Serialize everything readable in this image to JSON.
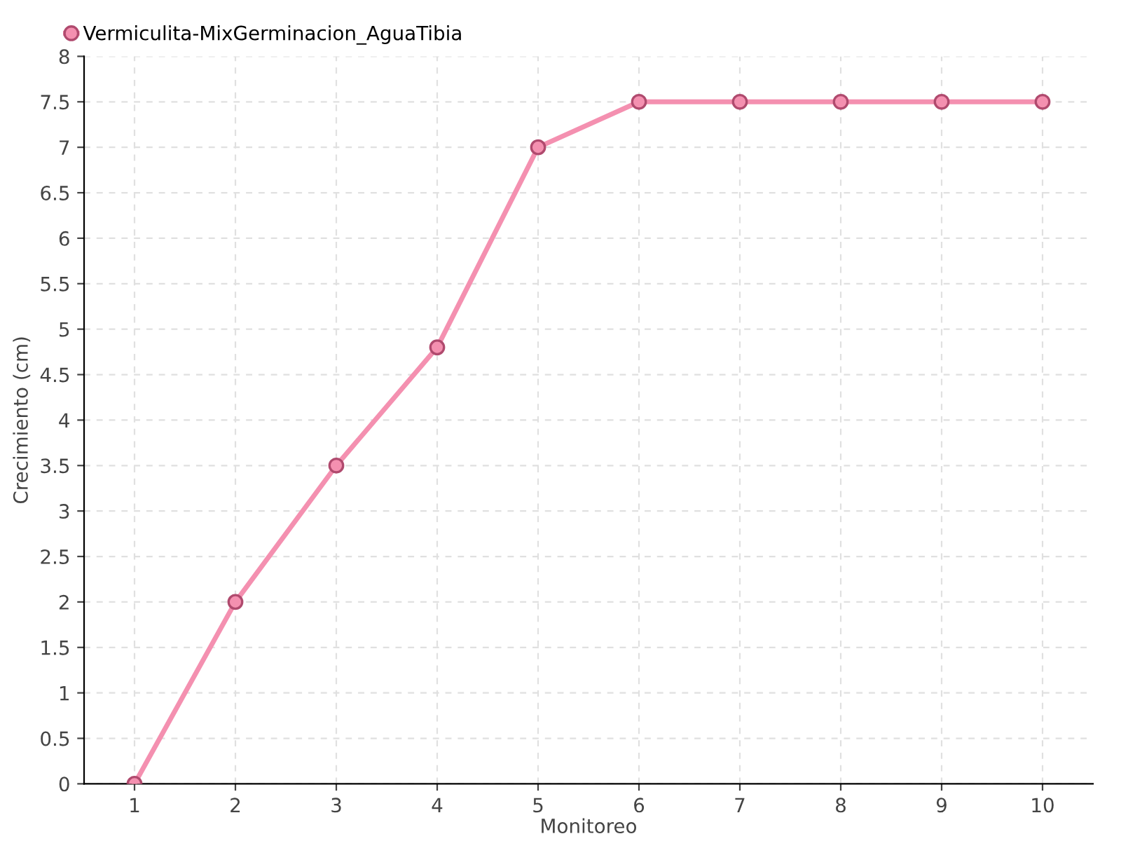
{
  "chart_data": {
    "type": "line",
    "xlabel": "Monitoreo",
    "ylabel": "Crecimiento (cm)",
    "categories": [
      "1",
      "2",
      "3",
      "4",
      "5",
      "6",
      "7",
      "8",
      "9",
      "10"
    ],
    "series": [
      {
        "name": "Vermiculita-MixGerminacion_AguaTibia",
        "color": "#f490b0",
        "values": [
          0,
          2,
          3.5,
          4.8,
          7,
          7.5,
          7.5,
          7.5,
          7.5,
          7.5
        ]
      }
    ],
    "ylim": [
      0,
      8
    ],
    "yticks": [
      0,
      0.5,
      1,
      1.5,
      2,
      2.5,
      3,
      3.5,
      4,
      4.5,
      5,
      5.5,
      6,
      6.5,
      7,
      7.5,
      8
    ],
    "grid": true,
    "legend": "top left",
    "marker": "circle",
    "line_style": "solid"
  }
}
